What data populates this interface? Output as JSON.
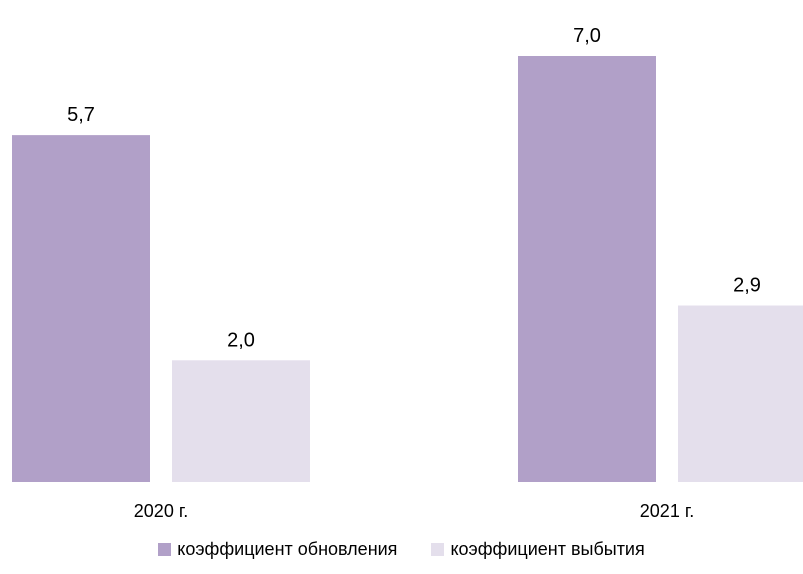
{
  "chart_data": {
    "type": "bar",
    "categories": [
      "2020 г.",
      "2021 г."
    ],
    "series": [
      {
        "name": "коэффициент обновления",
        "values": [
          5.7,
          7.0
        ],
        "labels": [
          "5,7",
          "7,0"
        ],
        "color": "#b1a0c8"
      },
      {
        "name": "коэффициент выбытия",
        "values": [
          2.0,
          2.9
        ],
        "labels": [
          "2,0",
          "2,9"
        ],
        "color": "#e4dfec"
      }
    ],
    "ylim": [
      0,
      7.0
    ],
    "grid": false,
    "legend_position": "bottom"
  }
}
